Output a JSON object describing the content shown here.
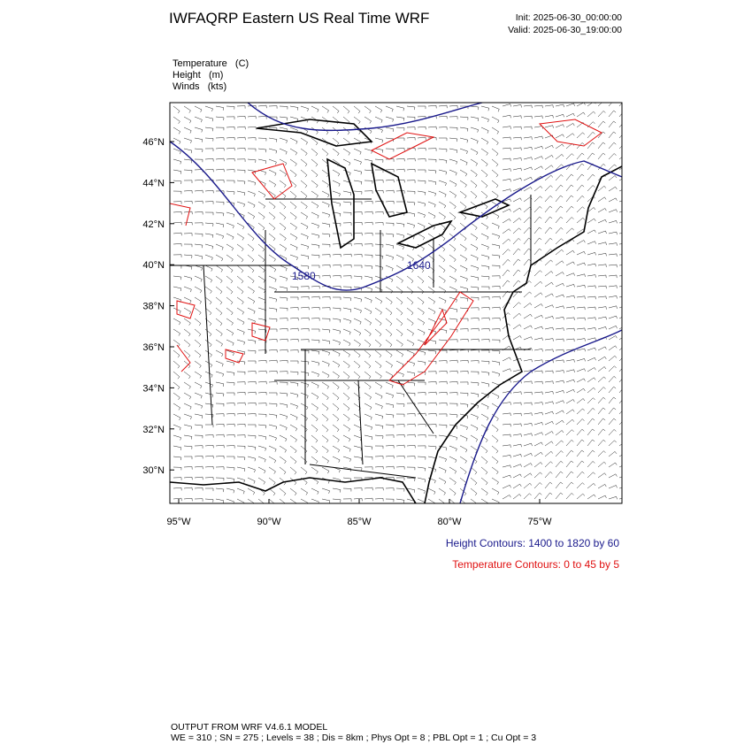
{
  "header": {
    "title": "IWFAQRP Eastern US Real Time WRF",
    "init": "Init: 2025-06-30_00:00:00",
    "valid": "Valid: 2025-06-30_19:00:00"
  },
  "fields": [
    "Temperature   (C)",
    "Height   (m)",
    "Winds   (kts)"
  ],
  "map": {
    "lat_labels": [
      "46°N",
      "44°N",
      "42°N",
      "40°N",
      "38°N",
      "36°N",
      "34°N",
      "32°N",
      "30°N"
    ],
    "lon_labels": [
      "95°W",
      "90°W",
      "85°W",
      "80°W",
      "75°W"
    ],
    "contour_labels": [
      "1580",
      "1640"
    ]
  },
  "legend": {
    "height": "Height Contours: 1400 to 1820 by 60",
    "temperature": "Temperature Contours: 0 to 45 by 5"
  },
  "footer": {
    "line1": "OUTPUT FROM WRF V4.6.1 MODEL",
    "line2": "WE = 310 ; SN = 275 ; Levels = 38 ; Dis = 8km ; Phys Opt = 8 ; PBL Opt = 1 ; Cu Opt = 3"
  }
}
